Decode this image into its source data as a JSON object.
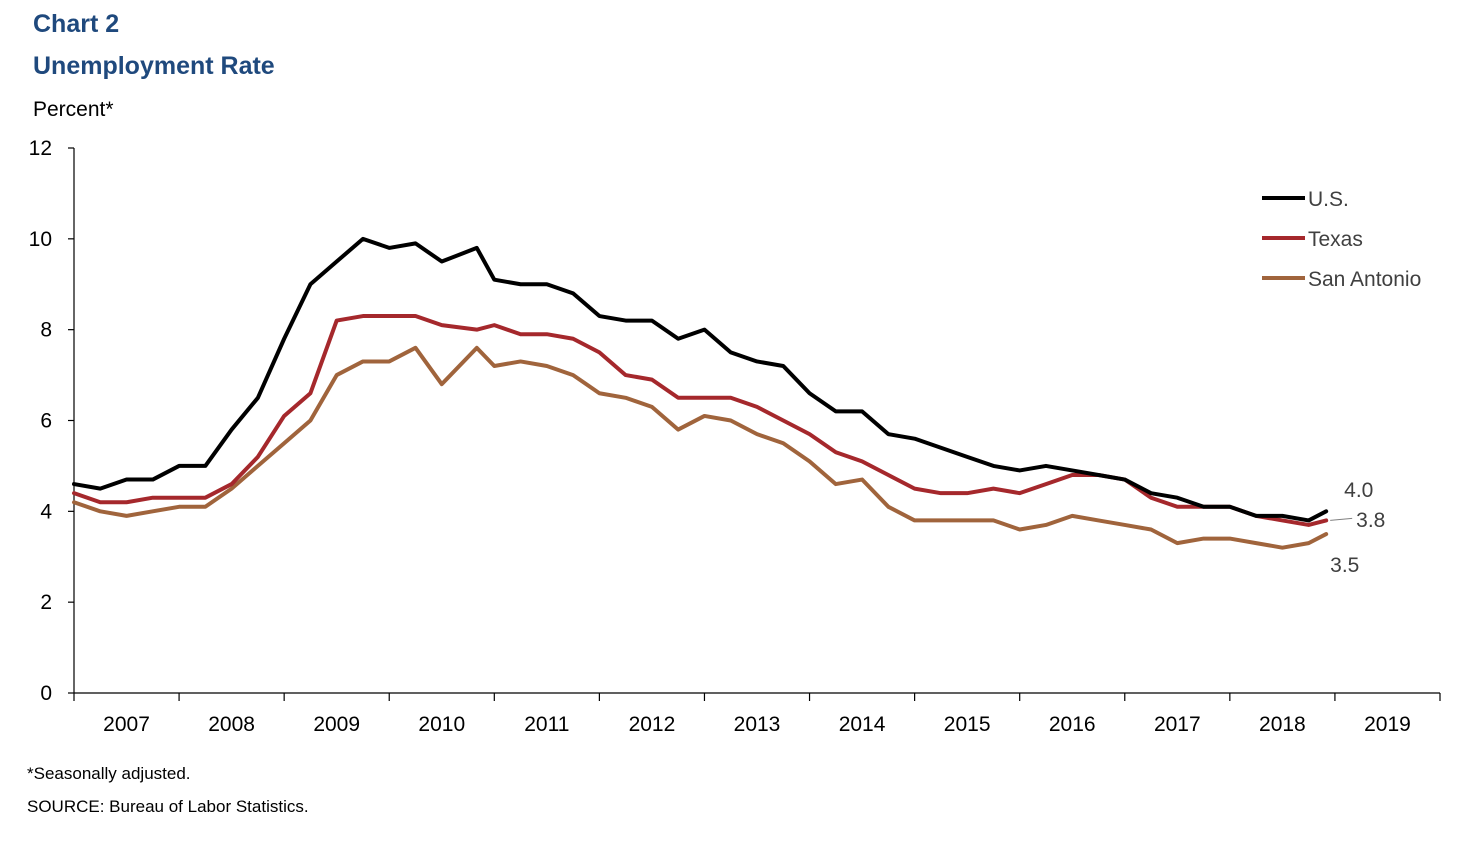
{
  "header": {
    "chart_label": "Chart 2",
    "title": "Unemployment Rate",
    "y_unit": "Percent*"
  },
  "footer": {
    "note": "*Seasonally adjusted.",
    "source": "SOURCE: Bureau of Labor Statistics."
  },
  "chart_data": {
    "type": "line",
    "title": "Unemployment Rate",
    "ylabel": "Percent*",
    "ylim": [
      0,
      12
    ],
    "yticks": [
      0,
      2,
      4,
      6,
      8,
      10,
      12
    ],
    "xlim": [
      "2007-01",
      "2019-12"
    ],
    "xticks": [
      "2007",
      "2008",
      "2009",
      "2010",
      "2011",
      "2012",
      "2013",
      "2014",
      "2015",
      "2016",
      "2017",
      "2018",
      "2019"
    ],
    "grid": false,
    "legend_position": "top-right",
    "series": [
      {
        "name": "U.S.",
        "color": "#000000",
        "x": [
          "2007-01",
          "2007-04",
          "2007-07",
          "2007-10",
          "2008-01",
          "2008-04",
          "2008-07",
          "2008-10",
          "2009-01",
          "2009-04",
          "2009-07",
          "2009-10",
          "2010-01",
          "2010-04",
          "2010-07",
          "2010-11",
          "2011-01",
          "2011-04",
          "2011-07",
          "2011-10",
          "2012-01",
          "2012-04",
          "2012-07",
          "2012-10",
          "2013-01",
          "2013-04",
          "2013-07",
          "2013-10",
          "2014-01",
          "2014-04",
          "2014-07",
          "2014-10",
          "2015-01",
          "2015-04",
          "2015-07",
          "2015-10",
          "2016-01",
          "2016-04",
          "2016-07",
          "2016-10",
          "2017-01",
          "2017-04",
          "2017-07",
          "2017-10",
          "2018-01",
          "2018-04",
          "2018-07",
          "2018-10",
          "2018-12"
        ],
        "values": [
          4.6,
          4.5,
          4.7,
          4.7,
          5.0,
          5.0,
          5.8,
          6.5,
          7.8,
          9.0,
          9.5,
          10.0,
          9.8,
          9.9,
          9.5,
          9.8,
          9.1,
          9.0,
          9.0,
          8.8,
          8.3,
          8.2,
          8.2,
          7.8,
          8.0,
          7.5,
          7.3,
          7.2,
          6.6,
          6.2,
          6.2,
          5.7,
          5.6,
          5.4,
          5.2,
          5.0,
          4.9,
          5.0,
          4.9,
          4.8,
          4.7,
          4.4,
          4.3,
          4.1,
          4.1,
          3.9,
          3.9,
          3.8,
          4.0
        ]
      },
      {
        "name": "Texas",
        "color": "#a5282c",
        "x": [
          "2007-01",
          "2007-04",
          "2007-07",
          "2007-10",
          "2008-01",
          "2008-04",
          "2008-07",
          "2008-10",
          "2009-01",
          "2009-04",
          "2009-07",
          "2009-10",
          "2010-01",
          "2010-04",
          "2010-07",
          "2010-11",
          "2011-01",
          "2011-04",
          "2011-07",
          "2011-10",
          "2012-01",
          "2012-04",
          "2012-07",
          "2012-10",
          "2013-01",
          "2013-04",
          "2013-07",
          "2013-10",
          "2014-01",
          "2014-04",
          "2014-07",
          "2014-10",
          "2015-01",
          "2015-04",
          "2015-07",
          "2015-10",
          "2016-01",
          "2016-04",
          "2016-07",
          "2016-10",
          "2017-01",
          "2017-04",
          "2017-07",
          "2017-10",
          "2018-01",
          "2018-04",
          "2018-07",
          "2018-10",
          "2018-12"
        ],
        "values": [
          4.4,
          4.2,
          4.2,
          4.3,
          4.3,
          4.3,
          4.6,
          5.2,
          6.1,
          6.6,
          8.2,
          8.3,
          8.3,
          8.3,
          8.1,
          8.0,
          8.1,
          7.9,
          7.9,
          7.8,
          7.5,
          7.0,
          6.9,
          6.5,
          6.5,
          6.5,
          6.3,
          6.0,
          5.7,
          5.3,
          5.1,
          4.8,
          4.5,
          4.4,
          4.4,
          4.5,
          4.4,
          4.6,
          4.8,
          4.8,
          4.7,
          4.3,
          4.1,
          4.1,
          4.1,
          3.9,
          3.8,
          3.7,
          3.8
        ]
      },
      {
        "name": "San Antonio",
        "color": "#a0643c",
        "x": [
          "2007-01",
          "2007-04",
          "2007-07",
          "2007-10",
          "2008-01",
          "2008-04",
          "2008-07",
          "2008-10",
          "2009-01",
          "2009-04",
          "2009-07",
          "2009-10",
          "2010-01",
          "2010-04",
          "2010-07",
          "2010-11",
          "2011-01",
          "2011-04",
          "2011-07",
          "2011-10",
          "2012-01",
          "2012-04",
          "2012-07",
          "2012-10",
          "2013-01",
          "2013-04",
          "2013-07",
          "2013-10",
          "2014-01",
          "2014-04",
          "2014-07",
          "2014-10",
          "2015-01",
          "2015-04",
          "2015-07",
          "2015-10",
          "2016-01",
          "2016-04",
          "2016-07",
          "2016-10",
          "2017-01",
          "2017-04",
          "2017-07",
          "2017-10",
          "2018-01",
          "2018-04",
          "2018-07",
          "2018-10",
          "2018-12"
        ],
        "values": [
          4.2,
          4.0,
          3.9,
          4.0,
          4.1,
          4.1,
          4.5,
          5.0,
          5.5,
          6.0,
          7.0,
          7.3,
          7.3,
          7.6,
          6.8,
          7.6,
          7.2,
          7.3,
          7.2,
          7.0,
          6.6,
          6.5,
          6.3,
          5.8,
          6.1,
          6.0,
          5.7,
          5.5,
          5.1,
          4.6,
          4.7,
          4.1,
          3.8,
          3.8,
          3.8,
          3.8,
          3.6,
          3.7,
          3.9,
          3.8,
          3.7,
          3.6,
          3.3,
          3.4,
          3.4,
          3.3,
          3.2,
          3.3,
          3.5
        ]
      }
    ],
    "end_labels": [
      "4.0",
      "3.8",
      "3.5"
    ]
  }
}
